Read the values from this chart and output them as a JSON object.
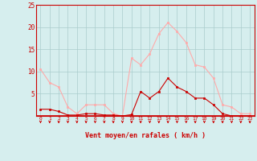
{
  "x": [
    0,
    1,
    2,
    3,
    4,
    5,
    6,
    7,
    8,
    9,
    10,
    11,
    12,
    13,
    14,
    15,
    16,
    17,
    18,
    19,
    20,
    21,
    22,
    23
  ],
  "moyen": [
    1.5,
    1.5,
    1.0,
    0.2,
    0.2,
    0.5,
    0.5,
    0.2,
    0.2,
    0.0,
    0.3,
    5.5,
    4.0,
    5.5,
    8.5,
    6.5,
    5.5,
    4.0,
    4.0,
    2.5,
    0.5,
    0.0,
    0.0,
    0.0
  ],
  "rafales": [
    10.5,
    7.5,
    6.5,
    2.0,
    0.5,
    2.5,
    2.5,
    2.5,
    0.5,
    0.0,
    13.0,
    11.5,
    14.0,
    18.5,
    21.0,
    19.0,
    16.5,
    11.5,
    11.0,
    8.5,
    2.5,
    2.0,
    0.5,
    0.5
  ],
  "color_moyen": "#cc0000",
  "color_rafales": "#ffaaaa",
  "background_color": "#d6eeee",
  "grid_color": "#aacccc",
  "xlabel": "Vent moyen/en rafales ( km/h )",
  "ylim": [
    0,
    25
  ],
  "yticks": [
    0,
    5,
    10,
    15,
    20,
    25
  ],
  "xticks": [
    0,
    1,
    2,
    3,
    4,
    5,
    6,
    7,
    8,
    9,
    10,
    11,
    12,
    13,
    14,
    15,
    16,
    17,
    18,
    19,
    20,
    21,
    22,
    23
  ],
  "line_width": 0.8,
  "marker_size": 2.0
}
